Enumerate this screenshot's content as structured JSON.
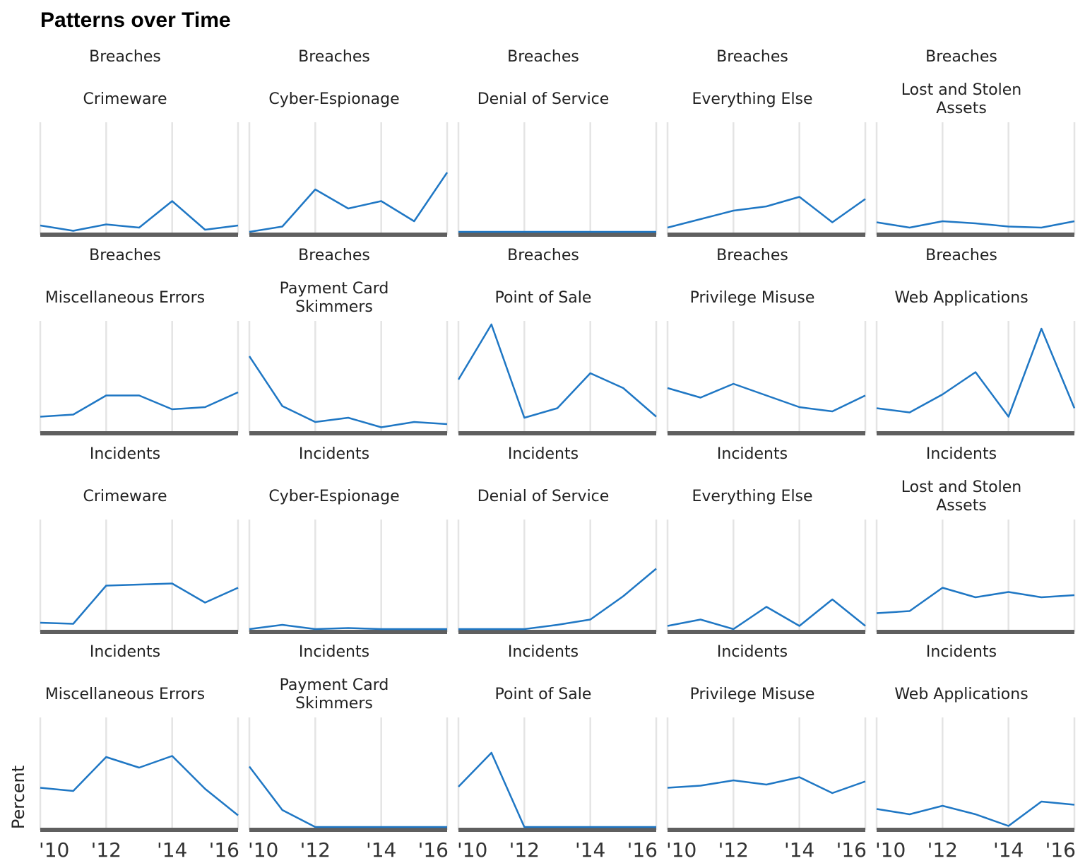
{
  "chart_data": {
    "type": "line",
    "title": "Patterns over Time",
    "ylabel": "Percent",
    "xlabel": "",
    "x": [
      2010,
      2011,
      2012,
      2013,
      2014,
      2015,
      2016
    ],
    "x_tick_labels": [
      "'10",
      "'12",
      "'14",
      "'16"
    ],
    "x_tick_values": [
      2010,
      2012,
      2014,
      2016
    ],
    "xlim": [
      2010,
      2016
    ],
    "ylim": [
      0,
      1
    ],
    "grid": true,
    "line_color": "#1f77c4",
    "panels": [
      {
        "group": "Breaches",
        "pattern": [
          "Crimeware"
        ],
        "values": [
          0.06,
          0.01,
          0.07,
          0.04,
          0.29,
          0.02,
          0.06
        ]
      },
      {
        "group": "Breaches",
        "pattern": [
          "Cyber-Espionage"
        ],
        "values": [
          0.0,
          0.05,
          0.4,
          0.22,
          0.29,
          0.1,
          0.56
        ]
      },
      {
        "group": "Breaches",
        "pattern": [
          "Denial of Service"
        ],
        "values": [
          0.0,
          0.0,
          0.0,
          0.0,
          0.0,
          0.0,
          0.0
        ]
      },
      {
        "group": "Breaches",
        "pattern": [
          "Everything Else"
        ],
        "values": [
          0.04,
          0.12,
          0.2,
          0.24,
          0.33,
          0.09,
          0.31
        ]
      },
      {
        "group": "Breaches",
        "pattern": [
          "Lost and Stolen",
          "Assets"
        ],
        "values": [
          0.09,
          0.04,
          0.1,
          0.08,
          0.05,
          0.04,
          0.1
        ]
      },
      {
        "group": "Breaches",
        "pattern": [
          "Miscellaneous Errors"
        ],
        "values": [
          0.13,
          0.15,
          0.33,
          0.33,
          0.2,
          0.22,
          0.36
        ]
      },
      {
        "group": "Breaches",
        "pattern": [
          "Payment Card",
          "Skimmers"
        ],
        "values": [
          0.7,
          0.23,
          0.08,
          0.12,
          0.03,
          0.08,
          0.06
        ]
      },
      {
        "group": "Breaches",
        "pattern": [
          "Point of Sale"
        ],
        "values": [
          0.48,
          1.0,
          0.12,
          0.21,
          0.54,
          0.4,
          0.13
        ]
      },
      {
        "group": "Breaches",
        "pattern": [
          "Privilege Misuse"
        ],
        "values": [
          0.4,
          0.31,
          0.44,
          0.33,
          0.22,
          0.18,
          0.33
        ]
      },
      {
        "group": "Breaches",
        "pattern": [
          "Web Applications"
        ],
        "values": [
          0.21,
          0.17,
          0.34,
          0.55,
          0.13,
          0.96,
          0.21
        ]
      },
      {
        "group": "Incidents",
        "pattern": [
          "Crimeware"
        ],
        "values": [
          0.06,
          0.05,
          0.41,
          0.42,
          0.43,
          0.25,
          0.39
        ]
      },
      {
        "group": "Incidents",
        "pattern": [
          "Cyber-Espionage"
        ],
        "values": [
          0.0,
          0.04,
          0.0,
          0.01,
          0.0,
          0.0,
          0.0
        ]
      },
      {
        "group": "Incidents",
        "pattern": [
          "Denial of Service"
        ],
        "values": [
          0.0,
          0.0,
          0.0,
          0.04,
          0.09,
          0.31,
          0.57
        ]
      },
      {
        "group": "Incidents",
        "pattern": [
          "Everything Else"
        ],
        "values": [
          0.03,
          0.09,
          0.0,
          0.21,
          0.03,
          0.28,
          0.03
        ]
      },
      {
        "group": "Incidents",
        "pattern": [
          "Lost and Stolen",
          "Assets"
        ],
        "values": [
          0.15,
          0.17,
          0.39,
          0.3,
          0.35,
          0.3,
          0.32
        ]
      },
      {
        "group": "Incidents",
        "pattern": [
          "Miscellaneous Errors"
        ],
        "values": [
          0.37,
          0.34,
          0.66,
          0.56,
          0.67,
          0.36,
          0.11
        ]
      },
      {
        "group": "Incidents",
        "pattern": [
          "Payment Card",
          "Skimmers"
        ],
        "values": [
          0.57,
          0.16,
          0.0,
          0.0,
          0.0,
          0.0,
          0.0
        ]
      },
      {
        "group": "Incidents",
        "pattern": [
          "Point of Sale"
        ],
        "values": [
          0.38,
          0.7,
          0.0,
          0.0,
          0.0,
          0.0,
          0.0
        ]
      },
      {
        "group": "Incidents",
        "pattern": [
          "Privilege Misuse"
        ],
        "values": [
          0.37,
          0.39,
          0.44,
          0.4,
          0.47,
          0.32,
          0.43
        ]
      },
      {
        "group": "Incidents",
        "pattern": [
          "Web Applications"
        ],
        "values": [
          0.17,
          0.12,
          0.2,
          0.12,
          0.01,
          0.24,
          0.21
        ]
      }
    ]
  }
}
